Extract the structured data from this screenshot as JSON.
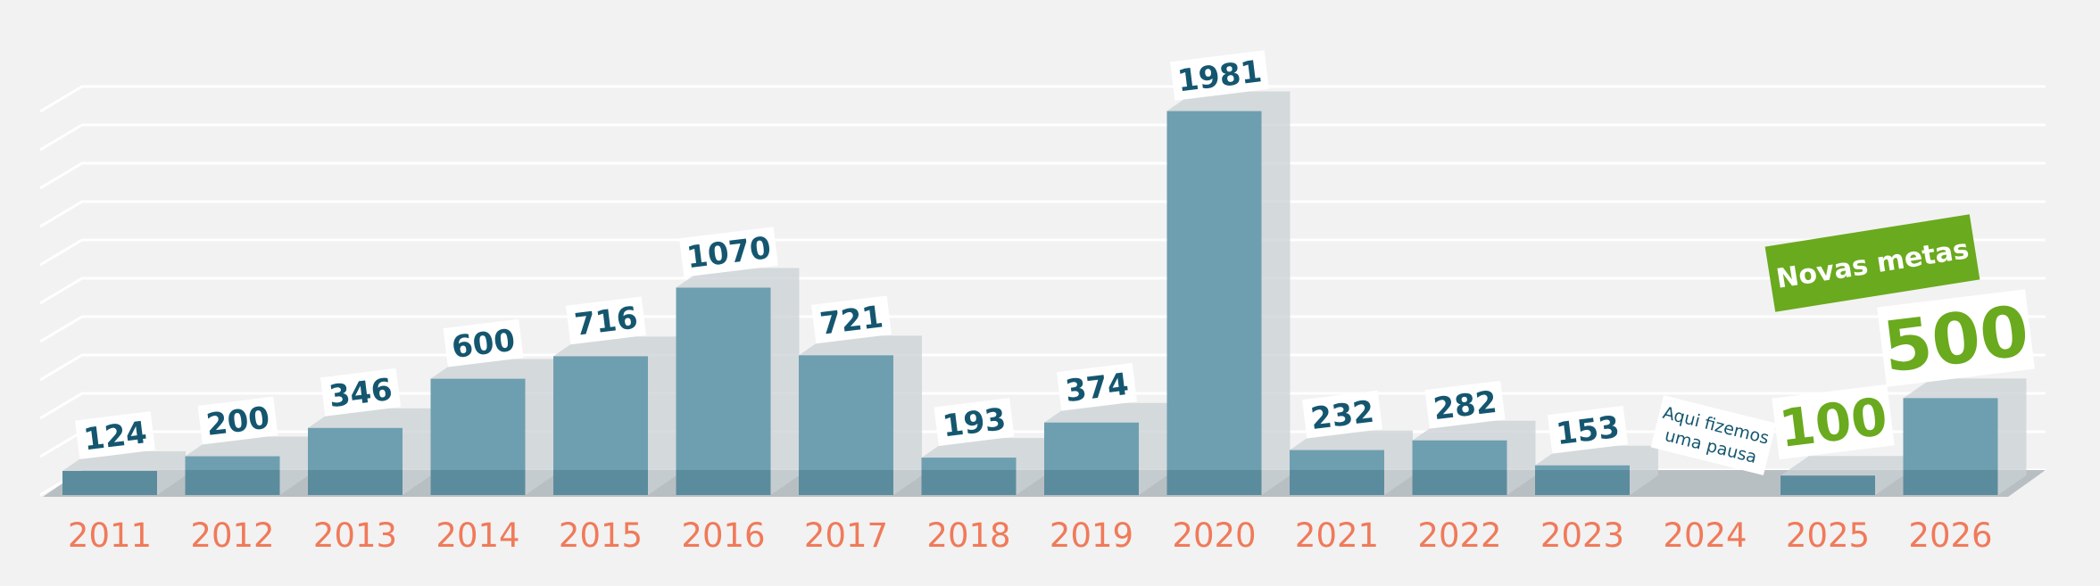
{
  "chart_data": {
    "type": "bar",
    "categories": [
      "2011",
      "2012",
      "2013",
      "2014",
      "2015",
      "2016",
      "2017",
      "2018",
      "2019",
      "2020",
      "2021",
      "2022",
      "2023",
      "2024",
      "2025",
      "2026"
    ],
    "values": [
      124,
      200,
      346,
      600,
      716,
      1070,
      721,
      193,
      374,
      1981,
      232,
      282,
      153,
      null,
      100,
      500
    ],
    "labels": [
      "124",
      "200",
      "346",
      "600",
      "716",
      "1070",
      "721",
      "193",
      "374",
      "1981",
      "232",
      "282",
      "153",
      "",
      "100",
      "500"
    ],
    "highlight_categories": [
      "2025",
      "2026"
    ],
    "ylim": [
      0,
      2140
    ],
    "grid": true,
    "gridline_count": 11,
    "colors": {
      "background": "#f2f2f2",
      "bar_front": "#6e9fb0",
      "bar_front_bottom": "#5b8c9e",
      "bar_shadow": "#c9d0d4",
      "floor": "#b8bfc3",
      "gridline": "#ffffff",
      "year_label": "#f07a5a",
      "value_label": "#14566f",
      "goal_green": "#6aaa1e",
      "label_box": "#ffffff"
    },
    "annotations": {
      "pause_note": [
        "Aqui fizemos",
        "uma pausa"
      ],
      "goals_banner": "Novas metas"
    }
  }
}
